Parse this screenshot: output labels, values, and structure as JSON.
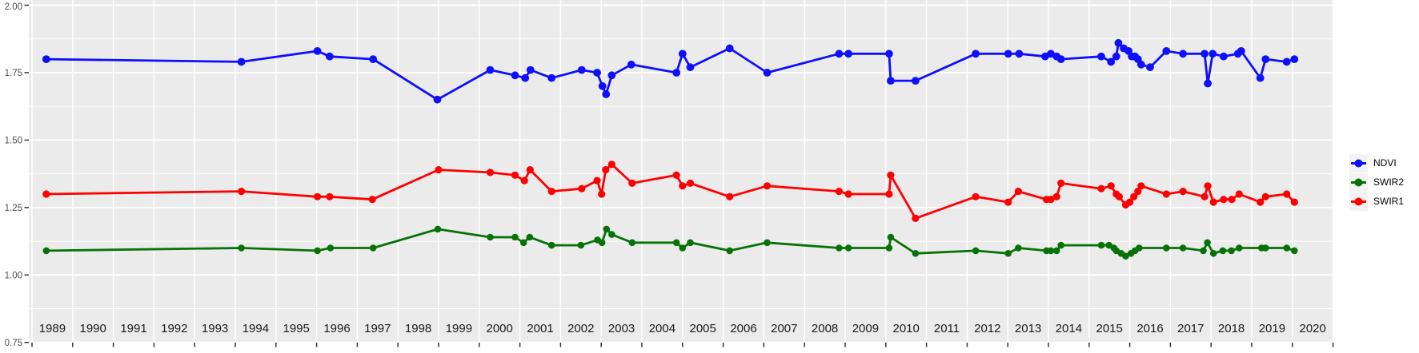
{
  "chart_data": {
    "type": "line",
    "title": "",
    "xlabel": "",
    "ylabel": "",
    "x_range": [
      1989,
      2021
    ],
    "ylim": [
      0.75,
      2.0
    ],
    "y_ticks": [
      "2.00",
      "1.75",
      "1.50",
      "1.25",
      "1.00",
      "0.75"
    ],
    "y_minor_ticks": [
      1.875,
      1.625,
      1.375,
      1.125,
      0.875
    ],
    "x_ticks": [
      "1989",
      "1990",
      "1991",
      "1992",
      "1993",
      "1994",
      "1995",
      "1996",
      "1997",
      "1998",
      "1999",
      "2000",
      "2001",
      "2002",
      "2003",
      "2004",
      "2005",
      "2006",
      "2007",
      "2008",
      "2009",
      "2010",
      "2011",
      "2012",
      "2013",
      "2014",
      "2015",
      "2016",
      "2017",
      "2018",
      "2019",
      "2020"
    ],
    "grid": "white major+minor horizontal, white vertical at year boundaries",
    "legend_position": "right",
    "colors": {
      "panel_background": "#ebebeb",
      "gridline": "#ffffff",
      "axis_text": "#4d4d4d",
      "x_label_text": "#1a1a1a",
      "tick_mark": "#333333",
      "legend_key_background": "#f2f2f2"
    },
    "series": [
      {
        "name": "NDVI",
        "color": "#0f0fff",
        "points": [
          [
            1989.35,
            1.8
          ],
          [
            1994.15,
            1.79
          ],
          [
            1996.02,
            1.83
          ],
          [
            1996.32,
            1.81
          ],
          [
            1997.39,
            1.8
          ],
          [
            1998.97,
            1.65
          ],
          [
            2000.27,
            1.76
          ],
          [
            2000.88,
            1.74
          ],
          [
            2001.13,
            1.73
          ],
          [
            2001.26,
            1.76
          ],
          [
            2001.78,
            1.73
          ],
          [
            2002.52,
            1.76
          ],
          [
            2002.9,
            1.75
          ],
          [
            2003.03,
            1.7
          ],
          [
            2003.12,
            1.67
          ],
          [
            2003.26,
            1.74
          ],
          [
            2003.74,
            1.78
          ],
          [
            2004.85,
            1.75
          ],
          [
            2005.0,
            1.82
          ],
          [
            2005.19,
            1.77
          ],
          [
            2006.16,
            1.84
          ],
          [
            2007.08,
            1.75
          ],
          [
            2008.85,
            1.82
          ],
          [
            2009.08,
            1.82
          ],
          [
            2010.08,
            1.82
          ],
          [
            2010.12,
            1.72
          ],
          [
            2010.73,
            1.72
          ],
          [
            2012.21,
            1.82
          ],
          [
            2013.01,
            1.82
          ],
          [
            2013.28,
            1.82
          ],
          [
            2013.92,
            1.81
          ],
          [
            2014.06,
            1.82
          ],
          [
            2014.2,
            1.81
          ],
          [
            2014.31,
            1.8
          ],
          [
            2015.3,
            1.81
          ],
          [
            2015.54,
            1.79
          ],
          [
            2015.67,
            1.81
          ],
          [
            2015.72,
            1.86
          ],
          [
            2015.85,
            1.84
          ],
          [
            2015.97,
            1.83
          ],
          [
            2016.05,
            1.81
          ],
          [
            2016.13,
            1.81
          ],
          [
            2016.2,
            1.8
          ],
          [
            2016.28,
            1.78
          ],
          [
            2016.5,
            1.77
          ],
          [
            2016.9,
            1.83
          ],
          [
            2017.31,
            1.82
          ],
          [
            2017.84,
            1.82
          ],
          [
            2017.92,
            1.71
          ],
          [
            2018.04,
            1.82
          ],
          [
            2018.31,
            1.81
          ],
          [
            2018.66,
            1.82
          ],
          [
            2018.74,
            1.83
          ],
          [
            2019.21,
            1.73
          ],
          [
            2019.34,
            1.8
          ],
          [
            2019.86,
            1.79
          ],
          [
            2020.05,
            1.8
          ]
        ]
      },
      {
        "name": "SWIR2",
        "color": "#077207",
        "points": [
          [
            1989.35,
            1.09
          ],
          [
            1994.15,
            1.1
          ],
          [
            1996.02,
            1.09
          ],
          [
            1996.34,
            1.1
          ],
          [
            1997.39,
            1.1
          ],
          [
            1998.98,
            1.17
          ],
          [
            2000.27,
            1.14
          ],
          [
            2000.88,
            1.14
          ],
          [
            2001.09,
            1.12
          ],
          [
            2001.24,
            1.14
          ],
          [
            2001.78,
            1.11
          ],
          [
            2002.5,
            1.11
          ],
          [
            2002.91,
            1.13
          ],
          [
            2003.02,
            1.12
          ],
          [
            2003.13,
            1.17
          ],
          [
            2003.26,
            1.15
          ],
          [
            2003.76,
            1.12
          ],
          [
            2004.85,
            1.12
          ],
          [
            2005.0,
            1.1
          ],
          [
            2005.19,
            1.12
          ],
          [
            2006.16,
            1.09
          ],
          [
            2007.08,
            1.12
          ],
          [
            2008.85,
            1.1
          ],
          [
            2009.08,
            1.1
          ],
          [
            2010.08,
            1.1
          ],
          [
            2010.12,
            1.14
          ],
          [
            2010.73,
            1.08
          ],
          [
            2012.21,
            1.09
          ],
          [
            2013.01,
            1.08
          ],
          [
            2013.26,
            1.1
          ],
          [
            2013.95,
            1.09
          ],
          [
            2014.06,
            1.09
          ],
          [
            2014.2,
            1.09
          ],
          [
            2014.31,
            1.11
          ],
          [
            2015.3,
            1.11
          ],
          [
            2015.49,
            1.11
          ],
          [
            2015.61,
            1.1
          ],
          [
            2015.67,
            1.09
          ],
          [
            2015.79,
            1.08
          ],
          [
            2015.9,
            1.07
          ],
          [
            2016.03,
            1.08
          ],
          [
            2016.13,
            1.09
          ],
          [
            2016.23,
            1.1
          ],
          [
            2016.9,
            1.1
          ],
          [
            2017.31,
            1.1
          ],
          [
            2017.81,
            1.09
          ],
          [
            2017.91,
            1.12
          ],
          [
            2018.06,
            1.08
          ],
          [
            2018.29,
            1.09
          ],
          [
            2018.5,
            1.09
          ],
          [
            2018.69,
            1.1
          ],
          [
            2019.24,
            1.1
          ],
          [
            2019.34,
            1.1
          ],
          [
            2019.86,
            1.1
          ],
          [
            2020.05,
            1.09
          ]
        ]
      },
      {
        "name": "SWIR1",
        "color": "#ff0000",
        "points": [
          [
            1989.35,
            1.3
          ],
          [
            1994.15,
            1.31
          ],
          [
            1996.02,
            1.29
          ],
          [
            1996.32,
            1.29
          ],
          [
            1997.37,
            1.28
          ],
          [
            1999.0,
            1.39
          ],
          [
            2000.27,
            1.38
          ],
          [
            2000.88,
            1.37
          ],
          [
            2001.11,
            1.35
          ],
          [
            2001.25,
            1.39
          ],
          [
            2001.78,
            1.31
          ],
          [
            2002.52,
            1.32
          ],
          [
            2002.9,
            1.35
          ],
          [
            2003.01,
            1.3
          ],
          [
            2003.11,
            1.39
          ],
          [
            2003.26,
            1.41
          ],
          [
            2003.76,
            1.34
          ],
          [
            2004.85,
            1.37
          ],
          [
            2005.0,
            1.33
          ],
          [
            2005.19,
            1.34
          ],
          [
            2006.16,
            1.29
          ],
          [
            2007.08,
            1.33
          ],
          [
            2008.85,
            1.31
          ],
          [
            2009.08,
            1.3
          ],
          [
            2010.08,
            1.3
          ],
          [
            2010.12,
            1.37
          ],
          [
            2010.73,
            1.21
          ],
          [
            2012.21,
            1.29
          ],
          [
            2013.01,
            1.27
          ],
          [
            2013.26,
            1.31
          ],
          [
            2013.95,
            1.28
          ],
          [
            2014.06,
            1.28
          ],
          [
            2014.2,
            1.29
          ],
          [
            2014.31,
            1.34
          ],
          [
            2015.3,
            1.32
          ],
          [
            2015.54,
            1.33
          ],
          [
            2015.67,
            1.3
          ],
          [
            2015.74,
            1.29
          ],
          [
            2015.9,
            1.26
          ],
          [
            2016.0,
            1.27
          ],
          [
            2016.1,
            1.29
          ],
          [
            2016.2,
            1.31
          ],
          [
            2016.28,
            1.33
          ],
          [
            2016.9,
            1.3
          ],
          [
            2017.31,
            1.31
          ],
          [
            2017.84,
            1.29
          ],
          [
            2017.92,
            1.33
          ],
          [
            2018.06,
            1.27
          ],
          [
            2018.31,
            1.28
          ],
          [
            2018.51,
            1.28
          ],
          [
            2018.69,
            1.3
          ],
          [
            2019.21,
            1.27
          ],
          [
            2019.34,
            1.29
          ],
          [
            2019.86,
            1.3
          ],
          [
            2020.05,
            1.27
          ]
        ]
      }
    ],
    "legend": {
      "entries": [
        "NDVI",
        "SWIR2",
        "SWIR1"
      ]
    }
  }
}
